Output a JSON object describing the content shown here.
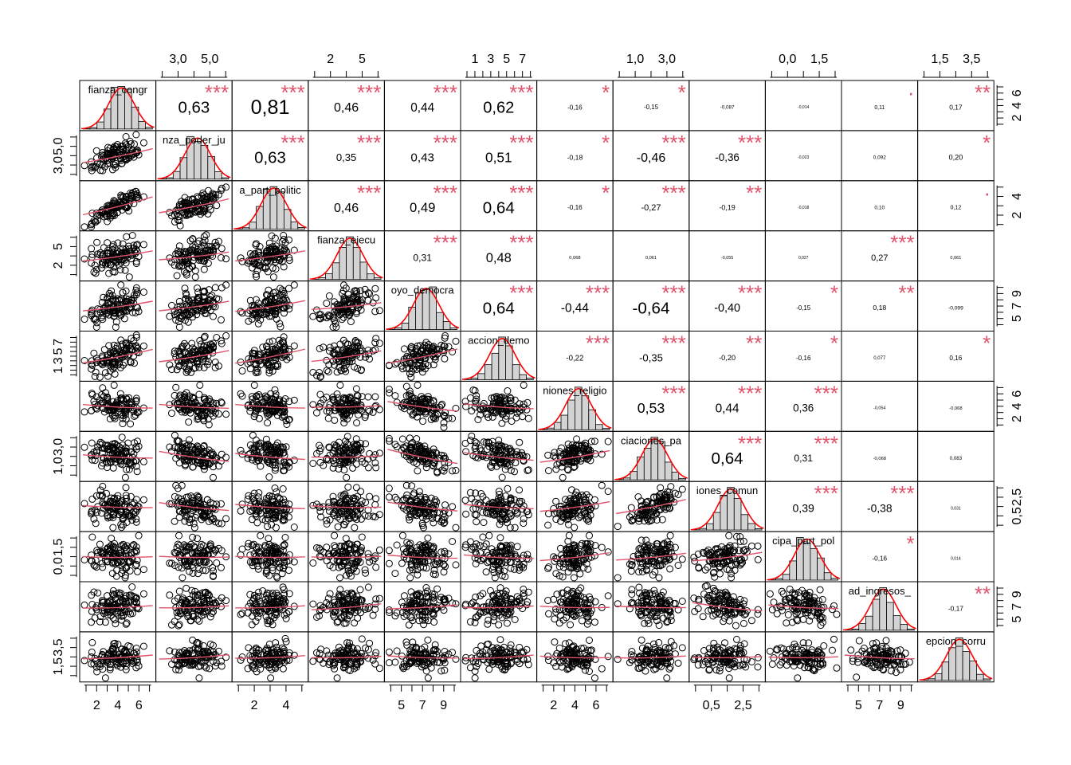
{
  "chart_data": {
    "type": "scatter",
    "subtype": "correlation-matrix",
    "title": "",
    "colors": {
      "star": "#df536b",
      "loess": "#df536b",
      "density": "#ff0000",
      "hist_fill": "#d3d3d3",
      "point": "#000000"
    },
    "variables": [
      {
        "label": "fianza_congr",
        "ticks": [
          "2",
          "4",
          "6"
        ],
        "range": [
          1.5,
          6.8
        ]
      },
      {
        "label": "nza_poder_ju",
        "ticks": [
          "3,0",
          "5,0"
        ],
        "range": [
          2.0,
          7.0
        ]
      },
      {
        "label": "a_part_politic",
        "ticks": [
          "2",
          "4"
        ],
        "range": [
          1.0,
          6.0
        ]
      },
      {
        "label": "fianza_ejecu",
        "ticks": [
          "2",
          "5"
        ],
        "range": [
          1.0,
          8.0
        ]
      },
      {
        "label": "oyo_democra",
        "ticks": [
          "5",
          "7",
          "9"
        ],
        "range": [
          4.5,
          9.3
        ]
      },
      {
        "label": "accion_demo",
        "ticks": [
          "1",
          "3",
          "5",
          "7"
        ],
        "range": [
          1.0,
          7.0
        ]
      },
      {
        "label": "niones_religio",
        "ticks": [
          "2",
          "4",
          "6"
        ],
        "range": [
          1.0,
          7.5
        ]
      },
      {
        "label": "ciaciones_pa",
        "ticks": [
          "1,0",
          "3,0"
        ],
        "range": [
          0.5,
          5.0
        ]
      },
      {
        "label": "iones_comun",
        "ticks": [
          "0,5",
          "2,5"
        ],
        "range": [
          0.2,
          3.6
        ]
      },
      {
        "label": "cipa_part_pol",
        "ticks": [
          "0,0",
          "1,5"
        ],
        "range": [
          -0.3,
          2.8
        ]
      },
      {
        "label": "ad_ingresos_",
        "ticks": [
          "5",
          "7",
          "9"
        ],
        "range": [
          4.3,
          9.0
        ]
      },
      {
        "label": "epcion_corru",
        "ticks": [
          "1,5",
          "3,5"
        ],
        "range": [
          1.2,
          5.0
        ]
      }
    ],
    "correlations": [
      [
        "0,63",
        "0,81",
        "0,46",
        "0,44",
        "0,62",
        "-0,16",
        "-0,15",
        "-0,087",
        "-0,014",
        "0,11",
        "0,17"
      ],
      [
        "0,63",
        "0,35",
        "0,43",
        "0,51",
        "-0,18",
        "-0,46",
        "-0,36",
        "-0,023",
        "0,092",
        "0,20"
      ],
      [
        "0,46",
        "0,49",
        "0,64",
        "-0,16",
        "-0,27",
        "-0,19",
        "-0,018",
        "0,10",
        "0,12"
      ],
      [
        "0,31",
        "0,48",
        "0,068",
        "0,061",
        "-0,055",
        "0,027",
        "0,27",
        "0,061"
      ],
      [
        "0,64",
        "-0,44",
        "-0,64",
        "-0,40",
        "-0,15",
        "0,18",
        "-0,099"
      ],
      [
        "-0,22",
        "-0,35",
        "-0,20",
        "-0,16",
        "0,077",
        "0,16"
      ],
      [
        "0,53",
        "0,44",
        "0,36",
        "-0,054",
        "-0,068"
      ],
      [
        "0,64",
        "0,31",
        "-0,068",
        "0,083"
      ],
      [
        "0,39",
        "-0,38",
        "0,031"
      ],
      [
        "-0,16",
        "0,014"
      ],
      [
        "-0,17"
      ]
    ],
    "significance": [
      [
        "***",
        "***",
        "***",
        "***",
        "***",
        "*",
        "*",
        "",
        "",
        "·",
        "**"
      ],
      [
        "***",
        "***",
        "***",
        "***",
        "*",
        "***",
        "***",
        "",
        "",
        "*"
      ],
      [
        "***",
        "***",
        "***",
        "*",
        "***",
        "**",
        "",
        "",
        "·"
      ],
      [
        "***",
        "***",
        "",
        "",
        "",
        "",
        "***",
        ""
      ],
      [
        "***",
        "***",
        "***",
        "***",
        "*",
        "**",
        ""
      ],
      [
        "***",
        "***",
        "**",
        "*",
        "",
        "*"
      ],
      [
        "***",
        "***",
        "***",
        "",
        ""
      ],
      [
        "***",
        "***",
        "",
        ""
      ],
      [
        "***",
        "***",
        ""
      ],
      [
        "*",
        ""
      ],
      [
        "**"
      ]
    ]
  }
}
